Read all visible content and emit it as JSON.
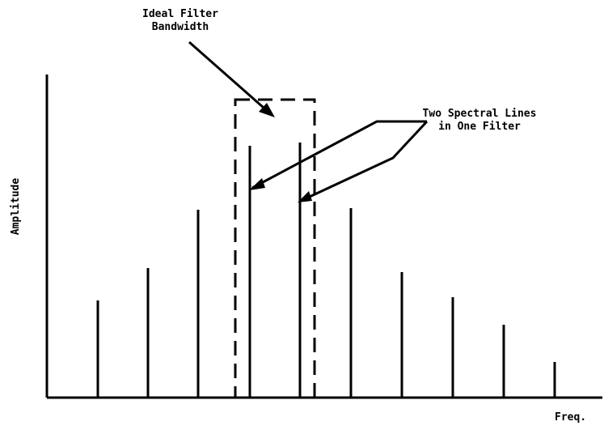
{
  "labels": {
    "filter_line1": "Ideal Filter",
    "filter_line2": "Bandwidth",
    "lines_line1": "Two Spectral Lines",
    "lines_line2": "in One Filter",
    "y_axis": "Amplitude",
    "x_axis": "Freq."
  },
  "spectral_lines": [
    {
      "name": "line-1",
      "amplitude": 120
    },
    {
      "name": "line-2",
      "amplitude": 160
    },
    {
      "name": "line-3",
      "amplitude": 232
    },
    {
      "name": "line-4",
      "amplitude": 311
    },
    {
      "name": "line-5",
      "amplitude": 315
    },
    {
      "name": "line-6",
      "amplitude": 234
    },
    {
      "name": "line-7",
      "amplitude": 155
    },
    {
      "name": "line-8",
      "amplitude": 124
    },
    {
      "name": "line-9",
      "amplitude": 90
    },
    {
      "name": "line-10",
      "amplitude": 44
    }
  ],
  "colors": {
    "ink": "#000000",
    "background": "#ffffff"
  }
}
